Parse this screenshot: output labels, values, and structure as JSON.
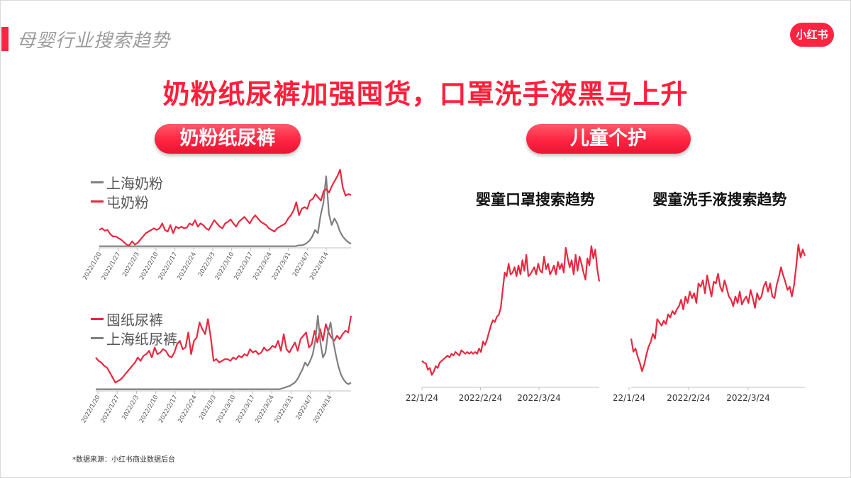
{
  "header": {
    "section_title": "母婴行业搜索趋势",
    "logo_text": "小红书",
    "headline": "奶粉纸尿裤加强囤货，口罩洗手液黑马上升"
  },
  "pills": {
    "left": "奶粉纸尿裤",
    "right": "儿童个护"
  },
  "footnote": "*数据来源：小红书商业数据后台",
  "colors": {
    "red": "#e8283f",
    "gray": "#7f7f7f",
    "brand": "#ff2442"
  },
  "chart_data": [
    {
      "type": "line",
      "title": "",
      "x_ticks": [
        "2022/1/20",
        "2022/1/27",
        "2022/2/3",
        "2022/2/10",
        "2022/2/17",
        "2022/2/24",
        "2022/3/3",
        "2022/3/10",
        "2022/3/17",
        "2022/3/24",
        "2022/3/31",
        "2022/4/7",
        "2022/4/14"
      ],
      "series": [
        {
          "name": "上海奶粉",
          "color": "#7f7f7f",
          "values": [
            2,
            2,
            2,
            2,
            2,
            2,
            2,
            2,
            2,
            2,
            2,
            2,
            2,
            2,
            2,
            2,
            2,
            2,
            2,
            2,
            2,
            2,
            2,
            2,
            2,
            2,
            2,
            2,
            2,
            2,
            2,
            2,
            2,
            2,
            2,
            2,
            2,
            2,
            2,
            2,
            2,
            2,
            2,
            2,
            2,
            2,
            2,
            2,
            2,
            2,
            2,
            2,
            2,
            2,
            2,
            2,
            2,
            2,
            2,
            2,
            2,
            2,
            2,
            2,
            2,
            2,
            2,
            2,
            2,
            2,
            2,
            2,
            3,
            3,
            4,
            6,
            9,
            14,
            22,
            18,
            40,
            55,
            88,
            42,
            28,
            36,
            30,
            20,
            14,
            10,
            7,
            5
          ]
        },
        {
          "name": "屯奶粉",
          "color": "#e8283f",
          "values": [
            22,
            24,
            21,
            22,
            17,
            14,
            14,
            12,
            10,
            7,
            4,
            3,
            8,
            4,
            6,
            10,
            14,
            18,
            20,
            22,
            24,
            22,
            24,
            30,
            22,
            20,
            28,
            18,
            26,
            24,
            26,
            24,
            25,
            30,
            28,
            34,
            26,
            30,
            28,
            24,
            22,
            28,
            34,
            30,
            26,
            24,
            30,
            32,
            35,
            30,
            26,
            32,
            35,
            38,
            34,
            30,
            36,
            40,
            36,
            32,
            30,
            28,
            24,
            22,
            20,
            24,
            26,
            28,
            30,
            36,
            40,
            46,
            56,
            40,
            48,
            50,
            48,
            58,
            60,
            66,
            62,
            58,
            70,
            72,
            68,
            76,
            82,
            88,
            96,
            74,
            64,
            66,
            65
          ]
        }
      ]
    },
    {
      "type": "line",
      "title": "",
      "x_ticks": [
        "2022/1/20",
        "2022/1/27",
        "2022/2/3",
        "2022/2/10",
        "2022/2/17",
        "2022/2/24",
        "2022/3/3",
        "2022/3/10",
        "2022/3/17",
        "2022/3/24",
        "2022/3/31",
        "2022/4/7",
        "2022/4/14"
      ],
      "series": [
        {
          "name": "囤纸尿裤",
          "color": "#e8283f",
          "values": [
            40,
            36,
            34,
            30,
            28,
            22,
            16,
            10,
            12,
            14,
            18,
            22,
            26,
            30,
            34,
            40,
            36,
            42,
            44,
            48,
            40,
            52,
            44,
            46,
            50,
            48,
            42,
            40,
            46,
            56,
            60,
            50,
            52,
            70,
            44,
            60,
            64,
            82,
            74,
            68,
            86,
            64,
            36,
            38,
            34,
            36,
            38,
            38,
            36,
            40,
            38,
            42,
            40,
            44,
            42,
            50,
            46,
            48,
            44,
            46,
            52,
            48,
            50,
            54,
            52,
            60,
            48,
            68,
            50,
            46,
            52,
            58,
            48,
            62,
            66,
            70,
            52,
            56,
            72,
            58,
            74,
            60,
            80,
            70,
            64,
            60,
            66,
            62,
            68,
            72,
            70,
            90
          ]
        },
        {
          "name": "上海纸尿裤",
          "color": "#7f7f7f",
          "values": [
            2,
            2,
            2,
            2,
            2,
            2,
            2,
            2,
            2,
            2,
            2,
            2,
            2,
            2,
            2,
            2,
            2,
            2,
            2,
            2,
            2,
            2,
            2,
            2,
            2,
            2,
            2,
            2,
            2,
            2,
            2,
            2,
            2,
            2,
            2,
            2,
            2,
            2,
            2,
            2,
            2,
            2,
            2,
            2,
            2,
            2,
            2,
            2,
            2,
            2,
            2,
            2,
            2,
            2,
            2,
            2,
            2,
            2,
            2,
            2,
            2,
            2,
            2,
            2,
            2,
            2,
            2,
            2,
            2,
            2,
            2,
            2,
            2,
            3,
            4,
            5,
            6,
            8,
            10,
            14,
            20,
            26,
            34,
            30,
            36,
            44,
            60,
            90,
            58,
            40,
            46,
            70,
            82,
            60,
            44,
            30,
            20,
            14,
            10,
            8,
            10
          ]
        }
      ]
    },
    {
      "type": "line",
      "title": "婴童口罩搜索趋势",
      "x_ticks": [
        "22/1/24",
        "2022/2/24",
        "2022/3/24"
      ],
      "series": [
        {
          "name": "",
          "color": "#e8283f",
          "values": [
            30,
            28,
            27,
            20,
            22,
            14,
            18,
            24,
            22,
            28,
            30,
            32,
            34,
            36,
            34,
            38,
            36,
            40,
            38,
            36,
            42,
            40,
            38,
            40,
            38,
            40,
            38,
            40,
            38,
            44,
            40,
            52,
            48,
            54,
            62,
            70,
            76,
            74,
            80,
            82,
            90,
            110,
            130,
            126,
            140,
            128,
            130,
            136,
            126,
            138,
            128,
            144,
            132,
            150,
            126,
            128,
            132,
            136,
            128,
            140,
            132,
            130,
            148,
            134,
            140,
            128,
            132,
            138,
            128,
            142,
            134,
            140,
            130,
            158,
            146,
            136,
            144,
            128,
            150,
            132,
            148,
            140,
            130,
            122,
            146,
            138,
            160,
            146,
            156,
            134,
            120
          ]
        }
      ]
    },
    {
      "type": "line",
      "title": "婴童洗手液搜索趋势",
      "x_ticks": [
        "22/1/24",
        "2022/2/24",
        "2022/3/24"
      ],
      "series": [
        {
          "name": "",
          "color": "#e8283f",
          "values": [
            60,
            44,
            48,
            38,
            30,
            20,
            28,
            40,
            50,
            56,
            66,
            60,
            84,
            80,
            76,
            82,
            78,
            90,
            86,
            94,
            90,
            96,
            100,
            108,
            96,
            112,
            104,
            118,
            110,
            116,
            104,
            128,
            124,
            132,
            116,
            138,
            124,
            112,
            130,
            128,
            140,
            124,
            118,
            132,
            122,
            112,
            108,
            100,
            112,
            104,
            118,
            102,
            108,
            112,
            104,
            120,
            110,
            98,
            116,
            108,
            112,
            124,
            130,
            118,
            128,
            112,
            110,
            126,
            136,
            148,
            138,
            130,
            120,
            124,
            112,
            126,
            150,
            176,
            160,
            170,
            162
          ]
        }
      ]
    }
  ]
}
